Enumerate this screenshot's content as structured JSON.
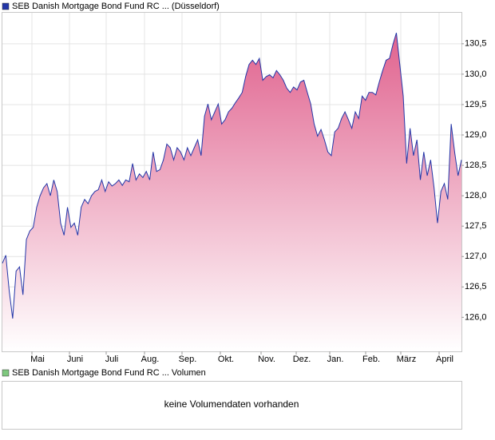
{
  "chart_data": [
    {
      "type": "area",
      "series": [
        {
          "name": "SEB Danish Mortgage Bond Fund RC ... (Düsseldorf)",
          "color": "#2336a8",
          "fill": "#e0628e",
          "values": [
            126.89,
            127.02,
            126.43,
            125.98,
            126.76,
            126.83,
            126.37,
            127.28,
            127.42,
            127.48,
            127.81,
            128.0,
            128.13,
            128.2,
            128.0,
            128.26,
            128.07,
            127.55,
            127.35,
            127.81,
            127.48,
            127.55,
            127.35,
            127.81,
            127.94,
            127.87,
            128.0,
            128.07,
            128.1,
            128.26,
            128.07,
            128.23,
            128.16,
            128.2,
            128.26,
            128.17,
            128.26,
            128.23,
            128.53,
            128.26,
            128.36,
            128.3,
            128.4,
            128.26,
            128.72,
            128.4,
            128.43,
            128.59,
            128.85,
            128.79,
            128.59,
            128.79,
            128.72,
            128.59,
            128.79,
            128.66,
            128.79,
            128.92,
            128.66,
            129.31,
            129.51,
            129.25,
            129.38,
            129.51,
            129.18,
            129.25,
            129.38,
            129.44,
            129.53,
            129.61,
            129.7,
            129.96,
            130.16,
            130.23,
            130.16,
            130.26,
            129.9,
            129.96,
            129.99,
            129.94,
            130.06,
            129.99,
            129.9,
            129.77,
            129.7,
            129.79,
            129.74,
            129.87,
            129.9,
            129.7,
            129.51,
            129.18,
            128.98,
            129.09,
            128.92,
            128.72,
            128.66,
            129.05,
            129.11,
            129.27,
            129.38,
            129.25,
            129.11,
            129.38,
            129.27,
            129.64,
            129.57,
            129.7,
            129.7,
            129.66,
            129.87,
            130.06,
            130.23,
            130.26,
            130.49,
            130.68,
            130.16,
            129.64,
            128.53,
            129.11,
            128.66,
            128.92,
            128.26,
            128.72,
            128.33,
            128.59,
            128.13,
            127.55,
            128.07,
            128.2,
            127.94,
            129.18,
            128.72,
            128.33,
            128.59
          ]
        }
      ],
      "xticks": [
        "Mai",
        "Juni",
        "Juli",
        "Aug.",
        "Sep.",
        "Okt.",
        "Nov.",
        "Dez.",
        "Jan.",
        "Feb.",
        "März",
        "April"
      ],
      "ylim": [
        125.44,
        131.01
      ],
      "yticks": [
        {
          "value": 126.0,
          "label": "126,0"
        },
        {
          "value": 126.5,
          "label": "126,5"
        },
        {
          "value": 127.0,
          "label": "127,0"
        },
        {
          "value": 127.5,
          "label": "127,5"
        },
        {
          "value": 128.0,
          "label": "128,0"
        },
        {
          "value": 128.5,
          "label": "128,5"
        },
        {
          "value": 129.0,
          "label": "129,0"
        },
        {
          "value": 129.5,
          "label": "129,5"
        },
        {
          "value": 130.0,
          "label": "130,0"
        },
        {
          "value": 130.5,
          "label": "130,5"
        }
      ],
      "grid": true
    },
    {
      "type": "bar",
      "series": [
        {
          "name": "SEB Danish Mortgage Bond Fund RC ... Volumen",
          "color": "#7ec87e"
        }
      ],
      "annotation": "keine Volumendaten vorhanden"
    }
  ]
}
